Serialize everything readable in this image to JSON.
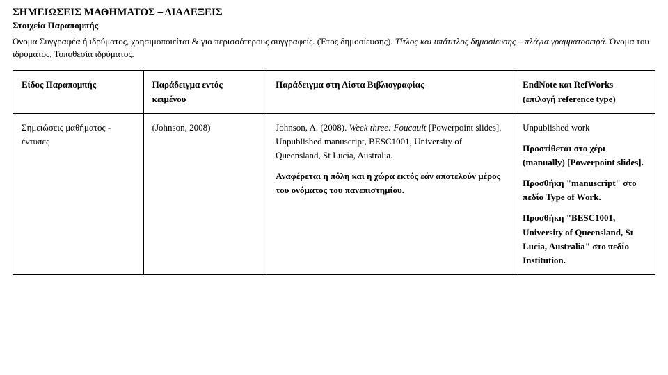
{
  "header": {
    "title": "ΣΗΜΕΙΩΣΕΙΣ ΜΑΘΗΜΑΤΟΣ – ΔΙΑΛΕΞΕΙΣ",
    "subtitle": "Στοιχεία Παραπομπής",
    "intro_plain1": "Όνομα Συγγραφέα ή ιδρύματος, χρησιμοποιείται & για περισσότερους συγγραφείς. (Έτος δημοσίευσης). ",
    "intro_italic": "Τίτλος και υπότιτλος δημοσίευσης – πλάγια γραμματοσειρά.",
    "intro_plain2": " Όνομα του ιδρύματος, Τοποθεσία ιδρύματος."
  },
  "table": {
    "headers": {
      "col1": "Είδος Παραπομπής",
      "col2": "Παράδειγμα εντός κειμένου",
      "col3": "Παράδειγμα στη Λίστα Βιβλιογραφίας",
      "col4": "EndNote και RefWorks (επιλογή reference type)"
    },
    "row": {
      "type": "Σημειώσεις μαθήματος - έντυπες",
      "in_text": "(Johnson, 2008)",
      "bib_lead": "Johnson, A. (2008). ",
      "bib_title_italic": "Week three: Foucault",
      "bib_after_title": " [Powerpoint slides]. Unpublished manuscript, BESC1001, University of Queensland, St Lucia, Australia.",
      "bib_note": "Αναφέρεται η πόλη και η χώρα εκτός εάν αποτελούν μέρος του ονόματος του πανεπιστημίου.",
      "notes_p1": "Unpublished work",
      "notes_p2a": "Προστίθεται στο χέρι (manually) ",
      "notes_p2b": "[Powerpoint slides].",
      "notes_p3a": "Προσθήκη ",
      "notes_p3b": "\"manuscript\"",
      "notes_p3c": " στο πεδίο ",
      "notes_p3d": "Type of Work.",
      "notes_p4a": "Προσθήκη ",
      "notes_p4b": "\"BESC1001, University of Queensland, St Lucia, Australia\"",
      "notes_p4c": " στο πεδίο ",
      "notes_p4d": "Institution."
    }
  }
}
